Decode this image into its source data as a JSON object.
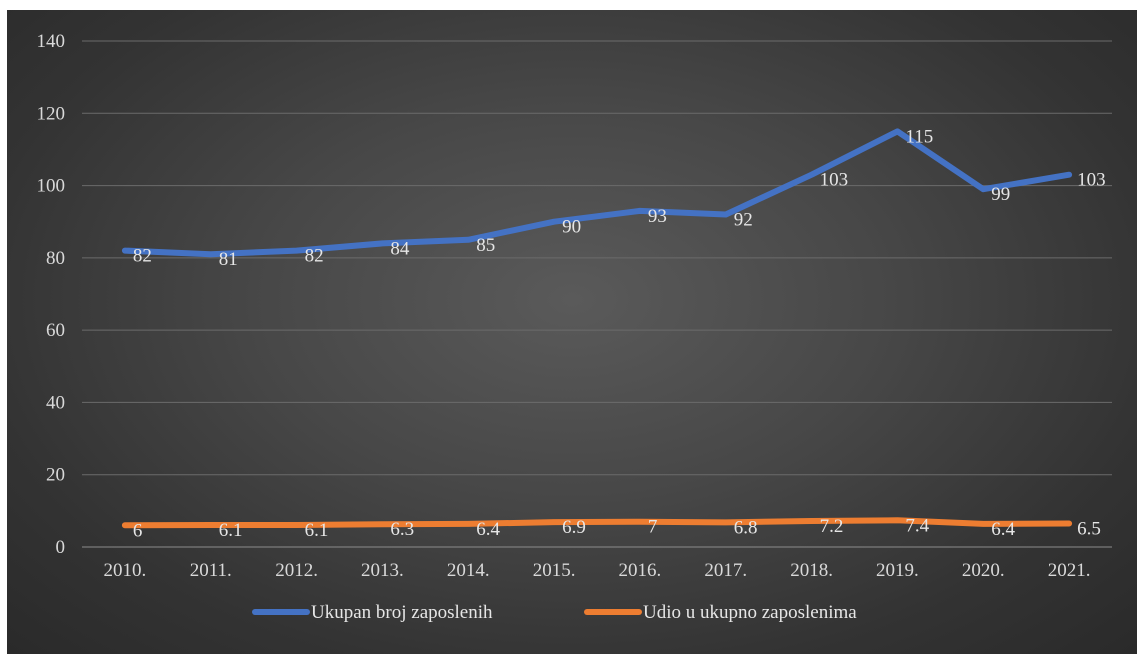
{
  "chart_data": {
    "type": "line",
    "title": "",
    "xlabel": "",
    "ylabel": "",
    "categories": [
      "2010.",
      "2011.",
      "2012.",
      "2013.",
      "2014.",
      "2015.",
      "2016.",
      "2017.",
      "2018.",
      "2019.",
      "2020.",
      "2021."
    ],
    "ylim": [
      0,
      140
    ],
    "yticks": [
      0,
      20,
      40,
      60,
      80,
      100,
      120,
      140
    ],
    "grid": true,
    "legend_position": "bottom",
    "series": [
      {
        "name": "Ukupan broj zaposlenih",
        "color": "#4472c4",
        "values": [
          82,
          81,
          82,
          84,
          85,
          90,
          93,
          92,
          103,
          115,
          99,
          103
        ],
        "labels": [
          "82",
          "81",
          "82",
          "84",
          "85",
          "90",
          "93",
          "92",
          "103",
          "115",
          "99",
          "103"
        ]
      },
      {
        "name": "Udio u ukupno zaposlenima",
        "color": "#ed7d31",
        "values": [
          6,
          6.1,
          6.1,
          6.3,
          6.4,
          6.9,
          7,
          6.8,
          7.2,
          7.4,
          6.4,
          6.5
        ],
        "labels": [
          "6",
          "6.1",
          "6.1",
          "6.3",
          "6.4",
          "6.9",
          "7",
          "6.8",
          "7.2",
          "7.4",
          "6.4",
          "6.5"
        ]
      }
    ]
  }
}
